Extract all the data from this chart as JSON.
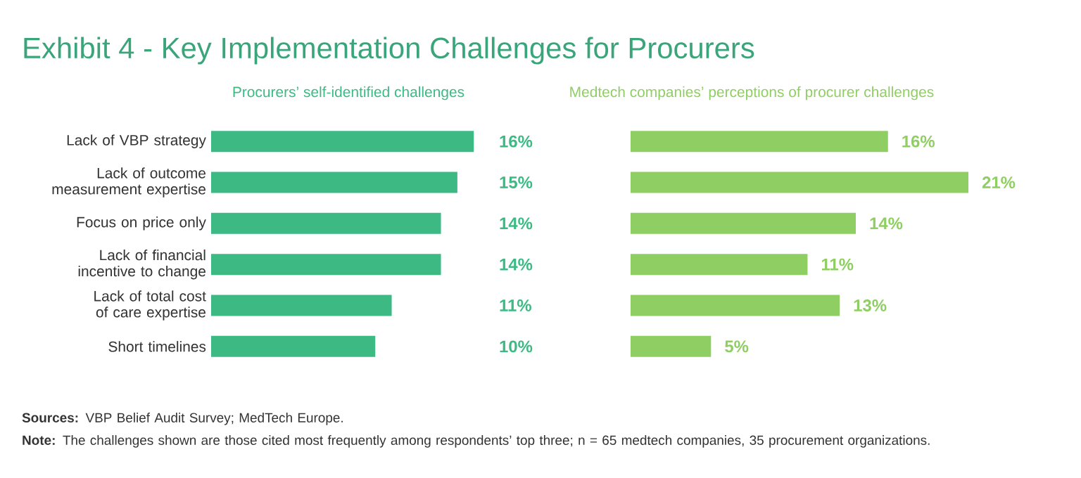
{
  "chart_data": [
    {
      "type": "bar",
      "orientation": "horizontal",
      "title": "Exhibit 4 - Key Implementation Challenges for Procurers",
      "subtitle": "Procurers’ self-identified challenges",
      "categories": [
        "Lack of VBP strategy",
        "Lack of outcome measurement expertise",
        "Focus on price only",
        "Lack of financial incentive to change",
        "Lack of total cost of care expertise",
        "Short timelines"
      ],
      "series": [
        {
          "color": "#3dba84",
          "values": [
            16,
            15,
            14,
            14,
            11,
            10
          ],
          "value_labels": [
            "16%",
            "15%",
            "14%",
            "14%",
            "11%",
            "10%"
          ]
        }
      ],
      "tick_labels": "y",
      "annotations": [
        "**Sources:** VBP Belief Audit Survey; MedTech Europe.",
        "**Note:** The challenges shown are those cited most frequently among respondents’ top three; n = 65 medtech companies, 35 procurement organizations."
      ]
    },
    {
      "type": "bar",
      "orientation": "horizontal",
      "subtitle": "Medtech companies’ perceptions of procurer challenges",
      "categories": [
        null,
        null,
        null,
        null,
        null,
        null
      ],
      "series": [
        {
          "color": "#8fce62",
          "values": [
            16,
            21,
            14,
            11,
            13,
            5
          ],
          "value_labels": [
            "16%",
            "21%",
            "14%",
            "11%",
            "13%",
            "5%"
          ]
        }
      ],
      "tick_labels": false
    }
  ]
}
